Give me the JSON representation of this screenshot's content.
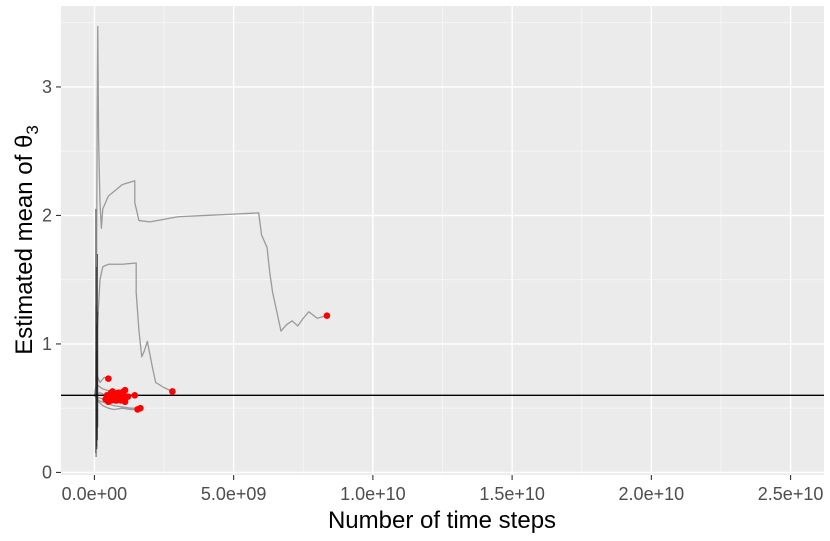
{
  "chart_data": {
    "type": "line",
    "xlabel": "Number of time steps",
    "ylabel_main": "Estimated mean of θ",
    "ylabel_sub": "3",
    "x_ticks": [
      0,
      5000000000,
      10000000000,
      15000000000,
      20000000000,
      25000000000
    ],
    "x_tick_labels": [
      "0.0e+00",
      "5.0e+09",
      "1.0e+10",
      "1.5e+10",
      "2.0e+10",
      "2.5e+10"
    ],
    "y_ticks": [
      0,
      1,
      2,
      3
    ],
    "y_tick_labels": [
      "0",
      "1",
      "2",
      "3"
    ],
    "xlim": [
      -1200000000,
      26200000000
    ],
    "ylim": [
      -0.02,
      3.63
    ],
    "grid": true,
    "colors": {
      "panel": "#ebebeb",
      "grid_major": "#ffffff",
      "trace": "#9a9a9a",
      "endpoint": "#ff0000",
      "reference_line": "#000000"
    },
    "reference_line_y": 0.6,
    "series": [
      {
        "points": [
          [
            50000000.0,
            0.7
          ],
          [
            70000000.0,
            1.2
          ],
          [
            100000000.0,
            2.8
          ],
          [
            120000000.0,
            3.47
          ],
          [
            150000000.0,
            2.6
          ],
          [
            200000000.0,
            2.1
          ],
          [
            250000000.0,
            1.9
          ],
          [
            300000000.0,
            2.05
          ],
          [
            500000000.0,
            2.15
          ],
          [
            1000000000.0,
            2.24
          ],
          [
            1450000000.0,
            2.27
          ],
          [
            1450000000.0,
            2.1
          ],
          [
            1600000000.0,
            1.96
          ],
          [
            2000000000.0,
            1.95
          ],
          [
            3000000000.0,
            1.99
          ],
          [
            4000000000.0,
            2.0
          ],
          [
            5000000000.0,
            2.01
          ],
          [
            5900000000.0,
            2.02
          ],
          [
            6000000000.0,
            1.85
          ],
          [
            6200000000.0,
            1.75
          ],
          [
            6300000000.0,
            1.55
          ],
          [
            6400000000.0,
            1.4
          ],
          [
            6500000000.0,
            1.3
          ],
          [
            6600000000.0,
            1.2
          ],
          [
            6700000000.0,
            1.1
          ],
          [
            6900000000.0,
            1.15
          ],
          [
            7100000000.0,
            1.18
          ],
          [
            7300000000.0,
            1.14
          ],
          [
            7500000000.0,
            1.2
          ],
          [
            7700000000.0,
            1.25
          ],
          [
            8000000000.0,
            1.2
          ],
          [
            8350000000.0,
            1.22
          ]
        ]
      },
      {
        "points": [
          [
            50000000.0,
            0.6
          ],
          [
            100000000.0,
            1.1
          ],
          [
            200000000.0,
            1.5
          ],
          [
            300000000.0,
            1.6
          ],
          [
            500000000.0,
            1.62
          ],
          [
            1000000000.0,
            1.62
          ],
          [
            1500000000.0,
            1.63
          ],
          [
            1500000000.0,
            1.4
          ],
          [
            1600000000.0,
            1.1
          ],
          [
            1700000000.0,
            0.9
          ],
          [
            1800000000.0,
            0.95
          ],
          [
            1900000000.0,
            1.02
          ],
          [
            2100000000.0,
            0.8
          ],
          [
            2200000000.0,
            0.7
          ],
          [
            2500000000.0,
            0.66
          ],
          [
            2800000000.0,
            0.63
          ]
        ]
      },
      {
        "points": [
          [
            0.0,
            0.6
          ],
          [
            100000000.0,
            0.75
          ],
          [
            200000000.0,
            0.7
          ],
          [
            350000000.0,
            0.74
          ],
          [
            500000000.0,
            0.73
          ]
        ]
      },
      {
        "points": [
          [
            0.0,
            0.6
          ],
          [
            100000000.0,
            0.68
          ],
          [
            300000000.0,
            0.65
          ],
          [
            600000000.0,
            0.63
          ],
          [
            900000000.0,
            0.62
          ],
          [
            1100000000.0,
            0.64
          ]
        ]
      },
      {
        "points": [
          [
            0.0,
            0.6
          ],
          [
            150000000.0,
            0.55
          ],
          [
            300000000.0,
            0.52
          ],
          [
            500000000.0,
            0.5
          ],
          [
            700000000.0,
            0.49
          ],
          [
            1000000000.0,
            0.5
          ],
          [
            1300000000.0,
            0.49
          ],
          [
            1550000000.0,
            0.49
          ]
        ]
      },
      {
        "points": [
          [
            0.0,
            0.6
          ],
          [
            150000000.0,
            0.56
          ],
          [
            400000000.0,
            0.54
          ],
          [
            700000000.0,
            0.52
          ],
          [
            1000000000.0,
            0.51
          ],
          [
            1300000000.0,
            0.5
          ],
          [
            1650000000.0,
            0.5
          ]
        ]
      },
      {
        "points": [
          [
            0.0,
            0.6
          ],
          [
            200000000.0,
            0.62
          ],
          [
            400000000.0,
            0.6
          ],
          [
            600000000.0,
            0.59
          ],
          [
            900000000.0,
            0.6
          ],
          [
            1200000000.0,
            0.61
          ],
          [
            1400000000.0,
            0.6
          ]
        ]
      },
      {
        "points": [
          [
            0.0,
            0.6
          ],
          [
            150000000.0,
            0.58
          ],
          [
            400000000.0,
            0.57
          ],
          [
            700000000.0,
            0.56
          ],
          [
            1100000000.0,
            0.55
          ]
        ]
      }
    ],
    "endpoints": [
      [
        8350000000.0,
        1.22
      ],
      [
        2800000000.0,
        0.63
      ],
      [
        500000000.0,
        0.73
      ],
      [
        1100000000.0,
        0.64
      ],
      [
        1450000000.0,
        0.6
      ],
      [
        1550000000.0,
        0.49
      ],
      [
        1650000000.0,
        0.5
      ],
      [
        1100000000.0,
        0.55
      ],
      [
        450000000.0,
        0.6
      ],
      [
        550000000.0,
        0.58
      ],
      [
        600000000.0,
        0.62
      ],
      [
        650000000.0,
        0.57
      ],
      [
        700000000.0,
        0.61
      ],
      [
        750000000.0,
        0.59
      ],
      [
        800000000.0,
        0.6
      ],
      [
        850000000.0,
        0.57
      ],
      [
        900000000.0,
        0.62
      ],
      [
        950000000.0,
        0.6
      ],
      [
        1000000000.0,
        0.58
      ],
      [
        1050000000.0,
        0.63
      ],
      [
        600000000.0,
        0.56
      ],
      [
        700000000.0,
        0.6
      ],
      [
        800000000.0,
        0.56
      ],
      [
        900000000.0,
        0.58
      ],
      [
        1000000000.0,
        0.61
      ],
      [
        500000000.0,
        0.55
      ],
      [
        650000000.0,
        0.63
      ],
      [
        750000000.0,
        0.56
      ],
      [
        850000000.0,
        0.62
      ],
      [
        950000000.0,
        0.56
      ],
      [
        1200000000.0,
        0.59
      ],
      [
        550000000.0,
        0.6
      ],
      [
        400000000.0,
        0.57
      ]
    ]
  }
}
